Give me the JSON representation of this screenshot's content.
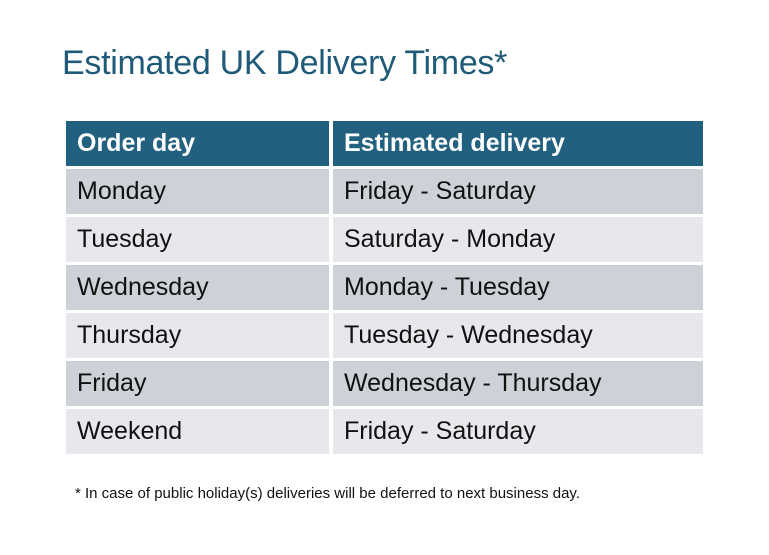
{
  "title": "Estimated UK Delivery Times*",
  "table": {
    "headers": [
      "Order day",
      "Estimated delivery"
    ],
    "rows": [
      [
        "Monday",
        "Friday - Saturday"
      ],
      [
        "Tuesday",
        "Saturday - Monday"
      ],
      [
        "Wednesday",
        "Monday - Tuesday"
      ],
      [
        "Thursday",
        "Tuesday - Wednesday"
      ],
      [
        "Friday",
        "Wednesday - Thursday"
      ],
      [
        "Weekend",
        "Friday - Saturday"
      ]
    ]
  },
  "footnote": "* In case of public holiday(s) deliveries will be deferred to next business day.",
  "colors": {
    "header": "#21607f",
    "row_dark": "#cdd1d8",
    "row_light": "#e6e8eb",
    "title": "#1f5b78"
  }
}
